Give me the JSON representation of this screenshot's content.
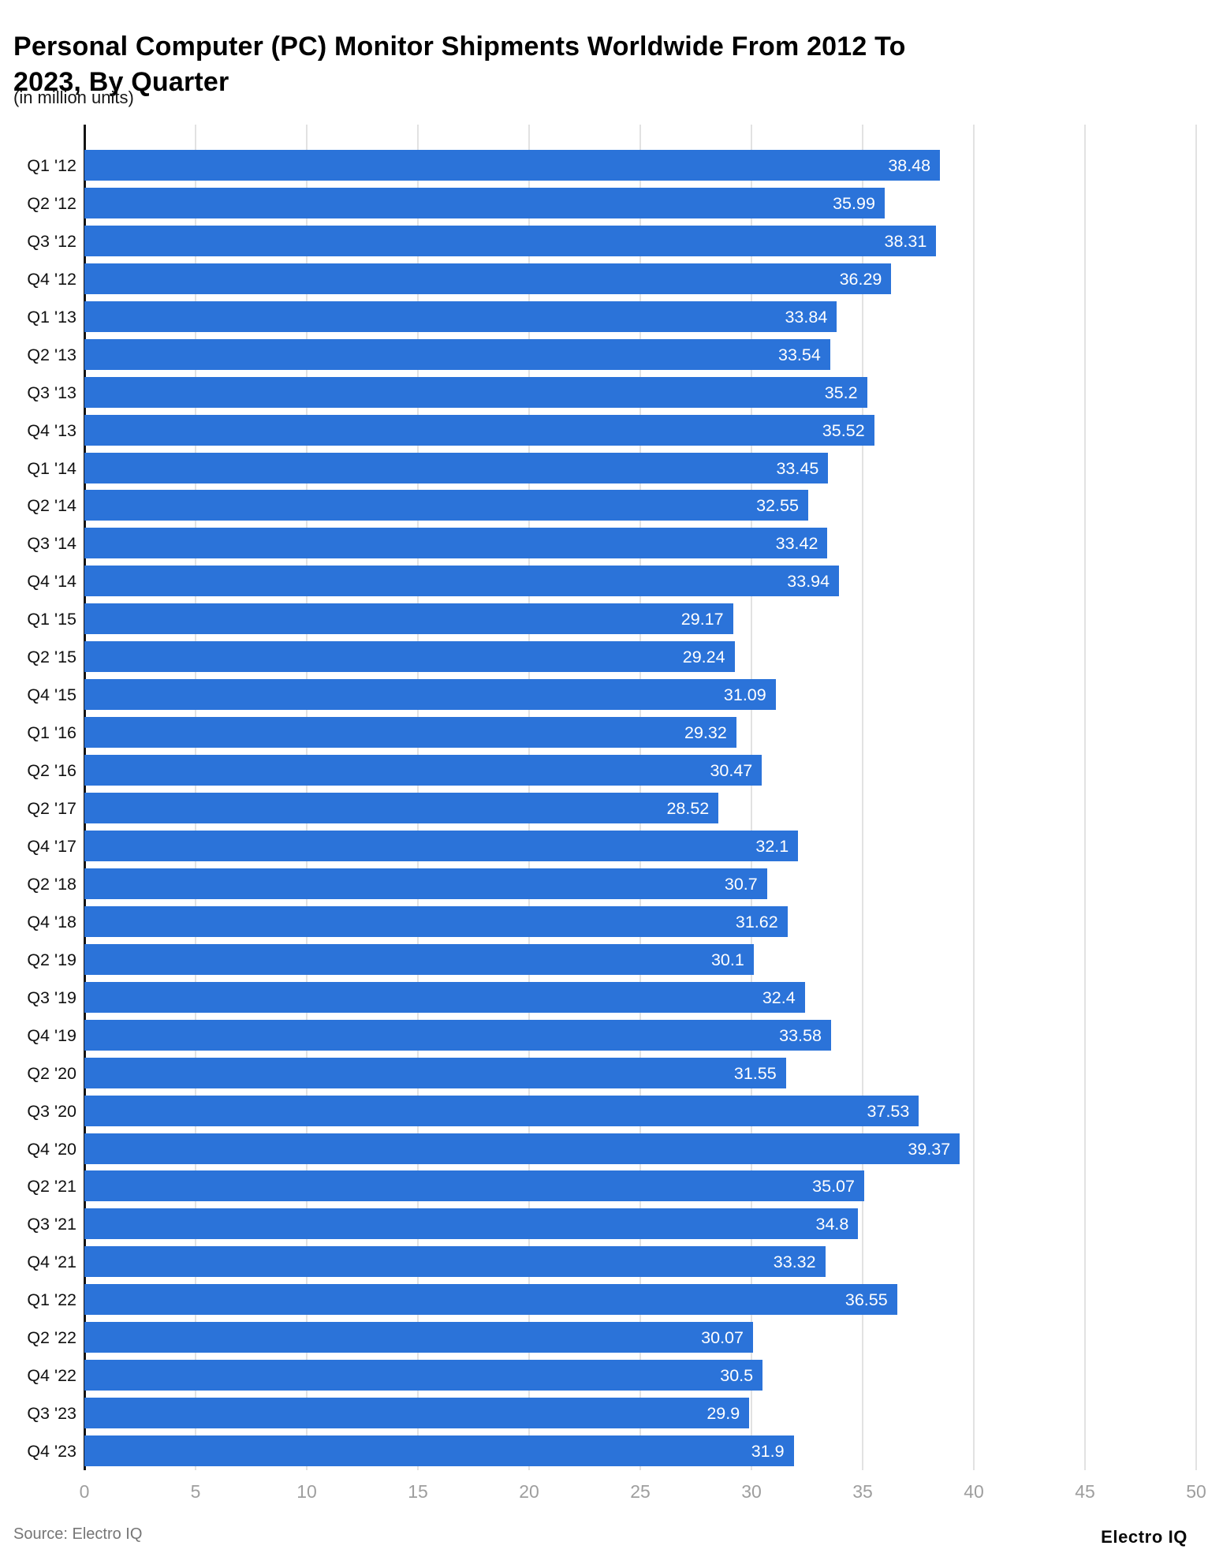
{
  "title": "Personal Computer (PC) Monitor Shipments Worldwide From 2012 To 2023, By Quarter",
  "subtitle": "(in million units)",
  "footer": {
    "source": "Source: Electro IQ",
    "brand": "Electro IQ"
  },
  "colors": {
    "bar": "#2b73d9",
    "axis_line": "#141414",
    "gridline": "#e2e2e2",
    "tick_label": "#9e9e9e",
    "category_label": "#111111",
    "value_label": "#ffffff"
  },
  "chart_data": {
    "type": "bar",
    "orientation": "horizontal",
    "title": "Personal Computer (PC) Monitor Shipments Worldwide From 2012 To 2023, By Quarter",
    "unit": "million units",
    "xlabel": "",
    "ylabel": "",
    "xlim": [
      0,
      50
    ],
    "xticks": [
      0,
      5,
      10,
      15,
      20,
      25,
      30,
      35,
      40,
      45,
      50
    ],
    "grid": true,
    "legend": false,
    "categories": [
      "Q1 '12",
      "Q2 '12",
      "Q3 '12",
      "Q4 '12",
      "Q1 '13",
      "Q2 '13",
      "Q3 '13",
      "Q4 '13",
      "Q1 '14",
      "Q2 '14",
      "Q3 '14",
      "Q4 '14",
      "Q1 '15",
      "Q2 '15",
      "Q4 '15",
      "Q1 '16",
      "Q2 '16",
      "Q2 '17",
      "Q4 '17",
      "Q2 '18",
      "Q4 '18",
      "Q2 '19",
      "Q3 '19",
      "Q4 '19",
      "Q2 '20",
      "Q3 '20",
      "Q4 '20",
      "Q2 '21",
      "Q3 '21",
      "Q4 '21",
      "Q1 '22",
      "Q2 '22",
      "Q4 '22",
      "Q3 '23",
      "Q4 '23"
    ],
    "values": [
      38.48,
      35.99,
      38.31,
      36.29,
      33.84,
      33.54,
      35.2,
      35.52,
      33.45,
      32.55,
      33.42,
      33.94,
      29.17,
      29.24,
      31.09,
      29.32,
      30.47,
      28.52,
      32.1,
      30.7,
      31.62,
      30.1,
      32.4,
      33.58,
      31.55,
      37.53,
      39.37,
      35.07,
      34.8,
      33.32,
      36.55,
      30.07,
      30.5,
      29.9,
      31.9
    ],
    "value_labels": [
      "38.48",
      "35.99",
      "38.31",
      "36.29",
      "33.84",
      "33.54",
      "35.2",
      "35.52",
      "33.45",
      "32.55",
      "33.42",
      "33.94",
      "29.17",
      "29.24",
      "31.09",
      "29.32",
      "30.47",
      "28.52",
      "32.1",
      "30.7",
      "31.62",
      "30.1",
      "32.4",
      "33.58",
      "31.55",
      "37.53",
      "39.37",
      "35.07",
      "34.8",
      "33.32",
      "36.55",
      "30.07",
      "30.5",
      "29.9",
      "31.9"
    ]
  }
}
